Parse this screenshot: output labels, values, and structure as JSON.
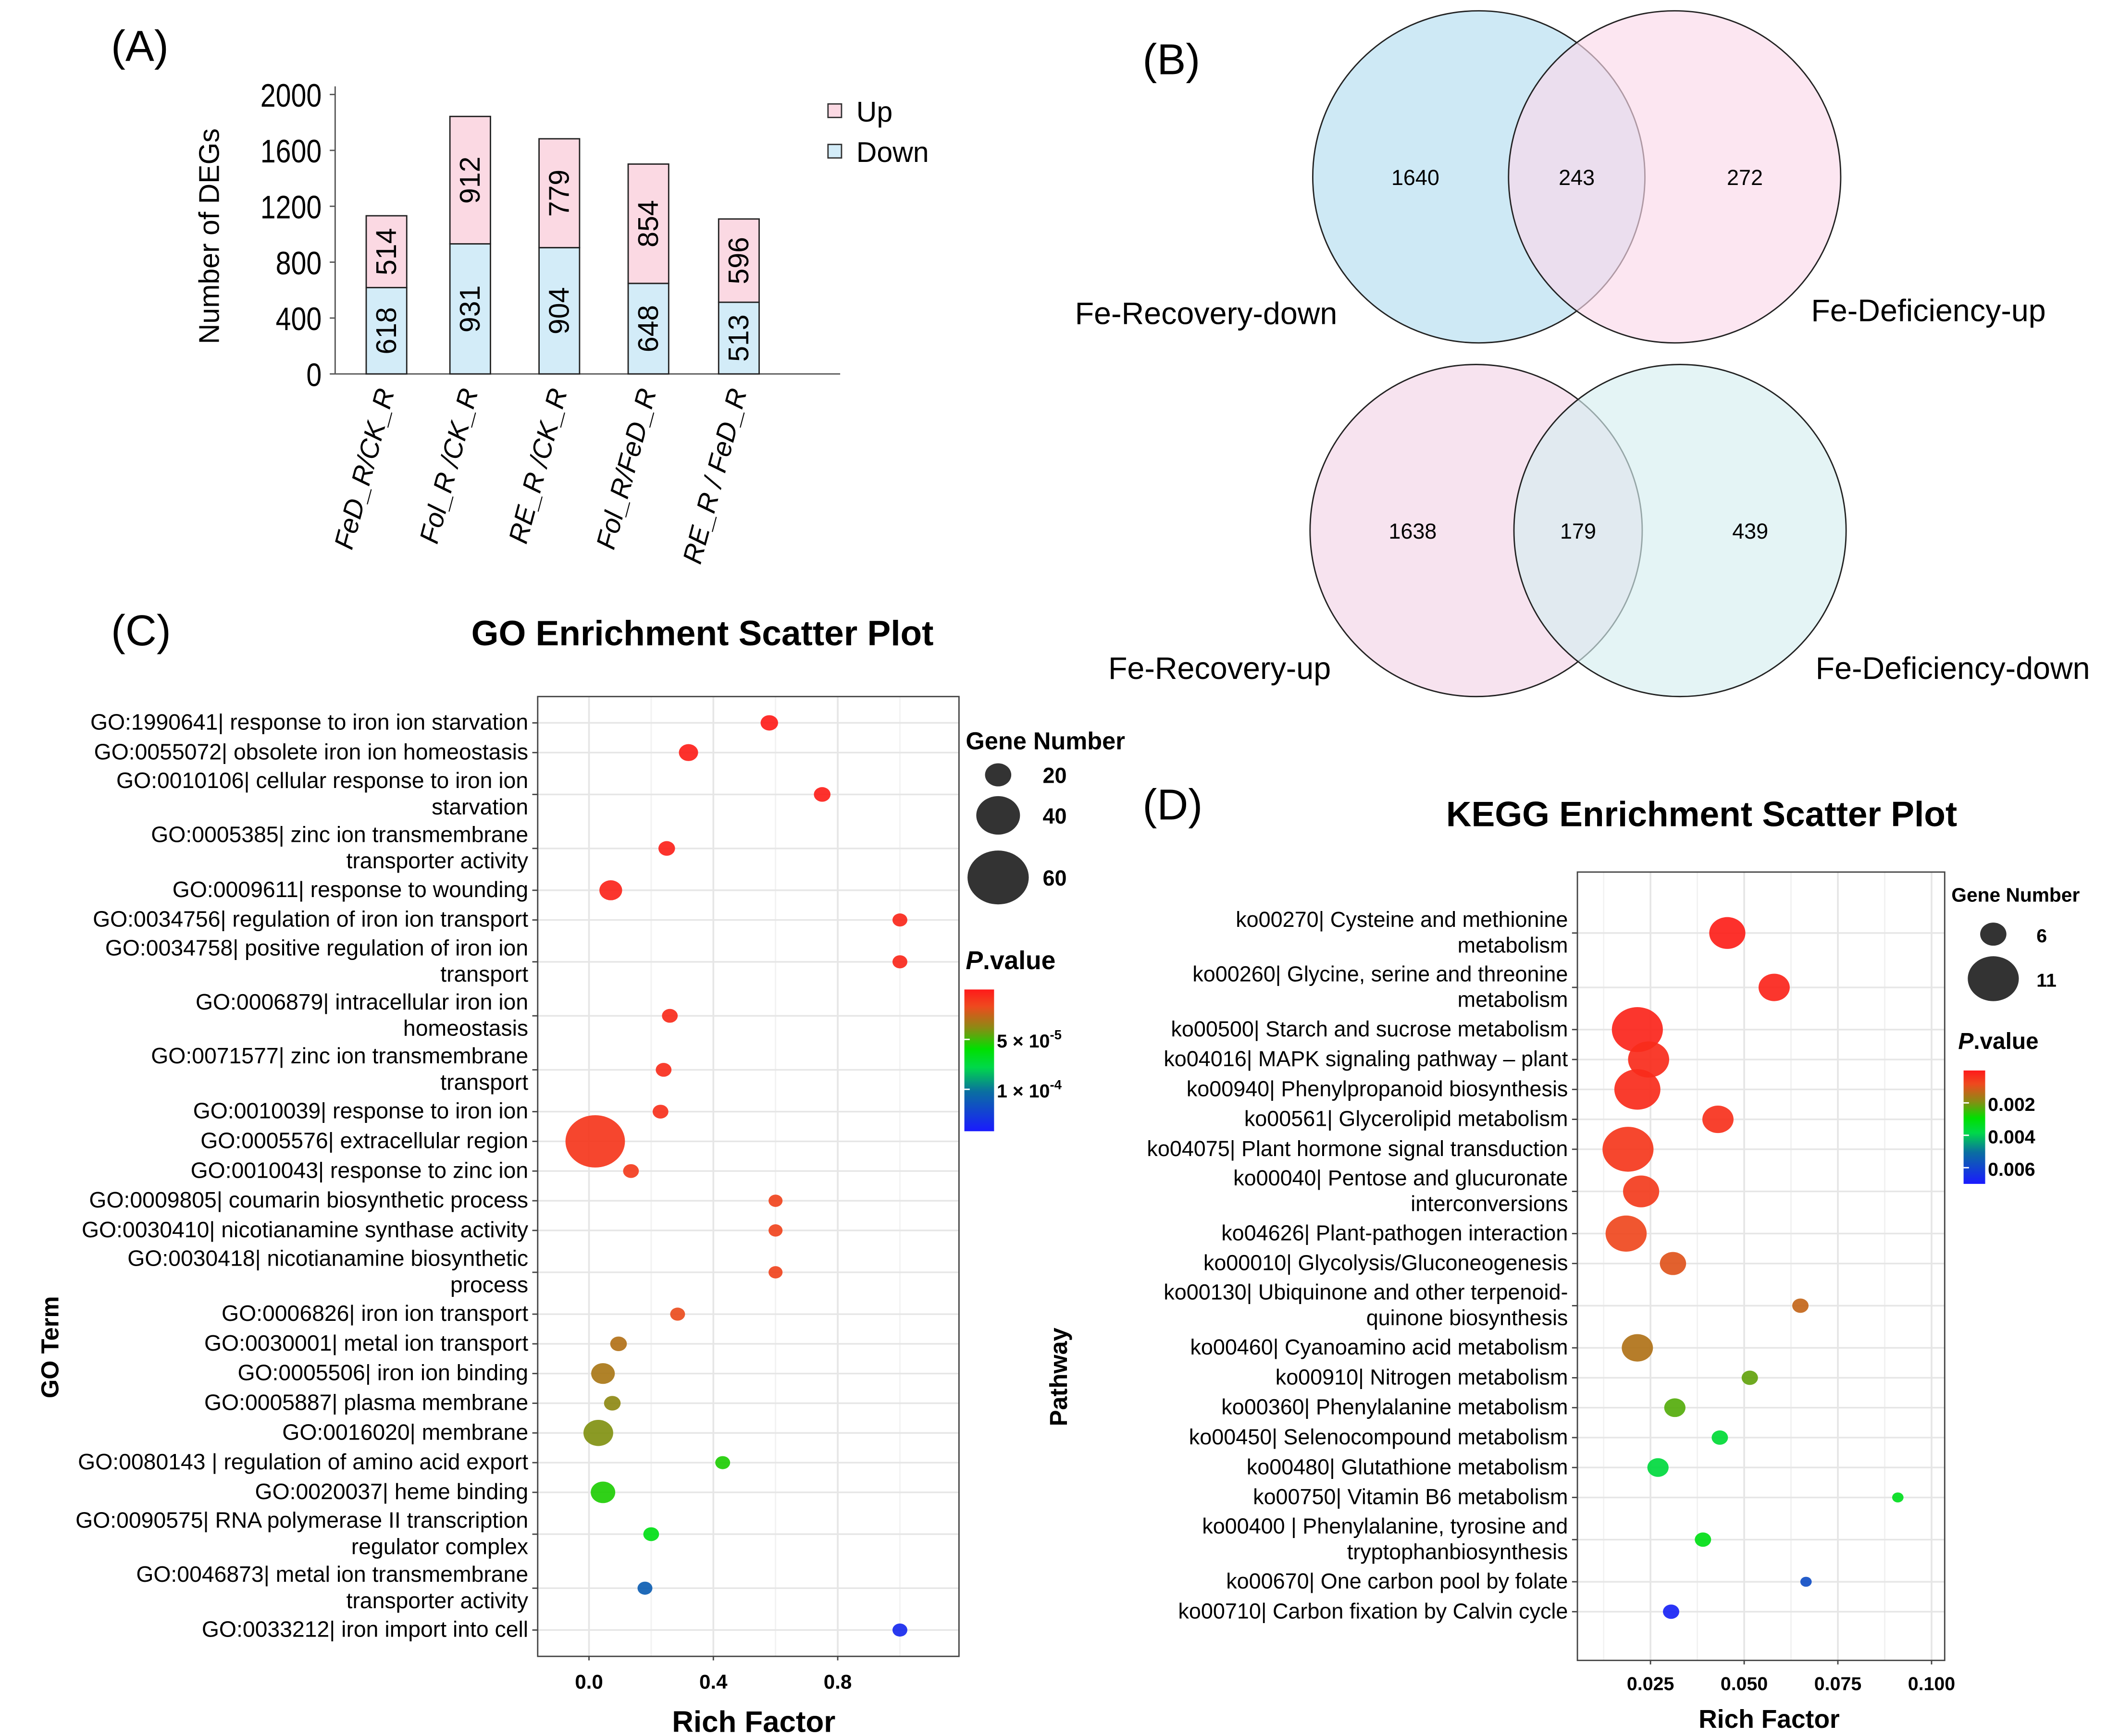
{
  "panel_labels": {
    "a": "(A)",
    "b": "(B)",
    "c": "(C)",
    "d": "(D)"
  },
  "colors": {
    "up": "#fbd9e3",
    "down": "#d3ecf8",
    "venn_tl": "#c9e7f4",
    "venn_tr": "#fbd8ea",
    "venn_bl": "#f6e0ed",
    "venn_br": "#d5eef0"
  },
  "chart_data": [
    {
      "type": "bar",
      "stacked": true,
      "ylabel": "Number of DEGs",
      "ylim": [
        0,
        2000
      ],
      "yticks": [
        0,
        400,
        800,
        1200,
        1600,
        2000
      ],
      "categories": [
        "FeD_R/CK_R",
        "Fol_R /CK_R",
        "RE_R /CK_R",
        "Fol_R/FeD_R",
        "RE_R / FeD_R"
      ],
      "series": [
        {
          "name": "Down",
          "values": [
            618,
            931,
            904,
            648,
            513
          ]
        },
        {
          "name": "Up",
          "values": [
            514,
            912,
            779,
            854,
            596
          ]
        }
      ],
      "legend": "top-right"
    },
    {
      "type": "venn",
      "sets": [
        {
          "left_label": "Fe-Recovery-down",
          "right_label": "Fe-Deficiency-up",
          "left_only": 1640,
          "both": 243,
          "right_only": 272
        },
        {
          "left_label": "Fe-Recovery-up",
          "right_label": "Fe-Deficiency-down",
          "left_only": 1638,
          "both": 179,
          "right_only": 439
        }
      ]
    },
    {
      "type": "scatter",
      "title": "GO Enrichment Scatter Plot",
      "xlabel": "Rich Factor",
      "ylabel": "GO Term",
      "xlim": [
        -0.165,
        1.19
      ],
      "xticks": [
        0.0,
        0.4,
        0.8
      ],
      "xtick_labels": [
        "0.0",
        "0.4",
        "0.8"
      ],
      "grid": true,
      "size_legend": {
        "title": "Gene Number",
        "values": [
          20,
          40,
          60
        ]
      },
      "color_legend": {
        "title_italic": "P",
        "title_rest": ".value",
        "range": [
          0,
          0.000142
        ],
        "tick_values": [
          5e-05,
          0.0001
        ],
        "tick_labels": [
          [
            "5 × 10",
            "-5"
          ],
          [
            "1 × 10",
            "-4"
          ]
        ]
      },
      "points": [
        {
          "label": [
            "GO:1990641| response to iron ion starvation"
          ],
          "x": 0.58,
          "genes": 10,
          "p": 1e-06
        },
        {
          "label": [
            "GO:0055072| obsolete iron ion homeostasis"
          ],
          "x": 0.32,
          "genes": 12,
          "p": 2e-06
        },
        {
          "label": [
            "GO:0010106| cellular response to iron ion",
            "starvation"
          ],
          "x": 0.75,
          "genes": 9,
          "p": 2e-06
        },
        {
          "label": [
            "GO:0005385| zinc ion transmembrane",
            "transporter activity"
          ],
          "x": 0.25,
          "genes": 9,
          "p": 3e-06
        },
        {
          "label": [
            "GO:0009611| response to wounding"
          ],
          "x": 0.07,
          "genes": 16,
          "p": 4e-06
        },
        {
          "label": [
            "GO:0034756| regulation of iron ion transport"
          ],
          "x": 1.0,
          "genes": 7,
          "p": 5e-06
        },
        {
          "label": [
            "GO:0034758| positive regulation of iron ion",
            "transport"
          ],
          "x": 1.0,
          "genes": 7,
          "p": 5e-06
        },
        {
          "label": [
            "GO:0006879| intracellular iron ion",
            "homeostasis"
          ],
          "x": 0.26,
          "genes": 8,
          "p": 6e-06
        },
        {
          "label": [
            "GO:0071577| zinc ion transmembrane",
            "transport"
          ],
          "x": 0.24,
          "genes": 8,
          "p": 7e-06
        },
        {
          "label": [
            "GO:0010039| response to iron ion"
          ],
          "x": 0.23,
          "genes": 8,
          "p": 8e-06
        },
        {
          "label": [
            "GO:0005576| extracellular region"
          ],
          "x": 0.02,
          "genes": 58,
          "p": 1e-05
        },
        {
          "label": [
            "GO:0010043| response to zinc ion"
          ],
          "x": 0.135,
          "genes": 8,
          "p": 1.2e-05
        },
        {
          "label": [
            "GO:0009805| coumarin biosynthetic process"
          ],
          "x": 0.6,
          "genes": 6,
          "p": 1.5e-05
        },
        {
          "label": [
            "GO:0030410| nicotianamine synthase activity"
          ],
          "x": 0.6,
          "genes": 6,
          "p": 1.5e-05
        },
        {
          "label": [
            "GO:0030418| nicotianamine biosynthetic",
            "process"
          ],
          "x": 0.6,
          "genes": 6,
          "p": 1.5e-05
        },
        {
          "label": [
            "GO:0006826| iron ion transport"
          ],
          "x": 0.285,
          "genes": 7,
          "p": 1.8e-05
        },
        {
          "label": [
            "GO:0030001| metal ion transport"
          ],
          "x": 0.095,
          "genes": 9,
          "p": 3e-05
        },
        {
          "label": [
            "GO:0005506| iron ion binding"
          ],
          "x": 0.045,
          "genes": 17,
          "p": 3.2e-05
        },
        {
          "label": [
            "GO:0005887| plasma membrane"
          ],
          "x": 0.075,
          "genes": 9,
          "p": 3.8e-05
        },
        {
          "label": [
            "GO:0016020| membrane"
          ],
          "x": 0.03,
          "genes": 24,
          "p": 4e-05
        },
        {
          "label": [
            "GO:0080143 | regulation of amino acid export"
          ],
          "x": 0.43,
          "genes": 7,
          "p": 5.5e-05
        },
        {
          "label": [
            "GO:0020037| heme binding"
          ],
          "x": 0.045,
          "genes": 18,
          "p": 5.5e-05
        },
        {
          "label": [
            "GO:0090575| RNA polymerase II transcription",
            "regulator complex"
          ],
          "x": 0.2,
          "genes": 8,
          "p": 6.5e-05
        },
        {
          "label": [
            "GO:0046873| metal ion transmembrane",
            "transporter activity"
          ],
          "x": 0.18,
          "genes": 7,
          "p": 0.00011
        },
        {
          "label": [
            "GO:0033212| iron import into cell"
          ],
          "x": 1.0,
          "genes": 7,
          "p": 0.000135
        }
      ]
    },
    {
      "type": "scatter",
      "title": "KEGG Enrichment Scatter Plot",
      "xlabel": "Rich Factor",
      "ylabel": "Pathway",
      "xlim": [
        0.0055,
        0.1035
      ],
      "xticks": [
        0.025,
        0.05,
        0.075,
        0.1
      ],
      "xtick_labels": [
        "0.025",
        "0.050",
        "0.075",
        "0.100"
      ],
      "grid": true,
      "size_legend": {
        "title": "Gene Number",
        "values": [
          6,
          11
        ]
      },
      "color_legend": {
        "title_italic": "P",
        "title_rest": ".value",
        "range": [
          0,
          0.007
        ],
        "tick_values": [
          0.002,
          0.004,
          0.006
        ],
        "tick_labels": [
          "0.002",
          "0.004",
          "0.006"
        ]
      },
      "points": [
        {
          "label": [
            "ko00270| Cysteine and methionine",
            "metabolism"
          ],
          "x": 0.0455,
          "genes": 8,
          "p": 0.0001
        },
        {
          "label": [
            "ko00260| Glycine, serine and threonine",
            "metabolism"
          ],
          "x": 0.058,
          "genes": 7,
          "p": 0.0002
        },
        {
          "label": [
            "ko00500| Starch and sucrose metabolism"
          ],
          "x": 0.0215,
          "genes": 11,
          "p": 0.0002
        },
        {
          "label": [
            "ko04016| MAPK signaling pathway – plant"
          ],
          "x": 0.0245,
          "genes": 9,
          "p": 0.0003
        },
        {
          "label": [
            "ko00940| Phenylpropanoid biosynthesis"
          ],
          "x": 0.0215,
          "genes": 10,
          "p": 0.0003
        },
        {
          "label": [
            "ko00561| Glycerolipid metabolism"
          ],
          "x": 0.043,
          "genes": 7,
          "p": 0.0004
        },
        {
          "label": [
            "ko04075| Plant hormone signal transduction"
          ],
          "x": 0.019,
          "genes": 11,
          "p": 0.0005
        },
        {
          "label": [
            "ko00040| Pentose and glucuronate",
            "interconversions"
          ],
          "x": 0.0225,
          "genes": 8,
          "p": 0.0006
        },
        {
          "label": [
            "ko04626| Plant-pathogen interaction"
          ],
          "x": 0.0185,
          "genes": 9,
          "p": 0.0008
        },
        {
          "label": [
            "ko00010| Glycolysis/Gluconeogenesis"
          ],
          "x": 0.031,
          "genes": 6,
          "p": 0.001
        },
        {
          "label": [
            "ko00130| Ubiquinone and other terpenoid-",
            "quinone biosynthesis"
          ],
          "x": 0.065,
          "genes": 4,
          "p": 0.0013
        },
        {
          "label": [
            "ko00460| Cyanoamino acid metabolism"
          ],
          "x": 0.0215,
          "genes": 7,
          "p": 0.0015
        },
        {
          "label": [
            "ko00910| Nitrogen metabolism"
          ],
          "x": 0.0515,
          "genes": 4,
          "p": 0.0022
        },
        {
          "label": [
            "ko00360| Phenylalanine metabolism"
          ],
          "x": 0.0315,
          "genes": 5,
          "p": 0.0023
        },
        {
          "label": [
            "ko00450| Selenocompound metabolism"
          ],
          "x": 0.0435,
          "genes": 4,
          "p": 0.0036
        },
        {
          "label": [
            "ko00480| Glutathione metabolism"
          ],
          "x": 0.027,
          "genes": 5,
          "p": 0.0037
        },
        {
          "label": [
            "ko00750| Vitamin B6 metabolism"
          ],
          "x": 0.091,
          "genes": 3,
          "p": 0.0033
        },
        {
          "label": [
            "ko00400 | Phenylalanine, tyrosine and",
            "tryptophanbiosynthesis"
          ],
          "x": 0.039,
          "genes": 4,
          "p": 0.0032
        },
        {
          "label": [
            "ko00670| One carbon pool by folate"
          ],
          "x": 0.0665,
          "genes": 3,
          "p": 0.0058
        },
        {
          "label": [
            "ko00710| Carbon fixation by Calvin cycle"
          ],
          "x": 0.0305,
          "genes": 4,
          "p": 0.0068
        }
      ]
    }
  ]
}
